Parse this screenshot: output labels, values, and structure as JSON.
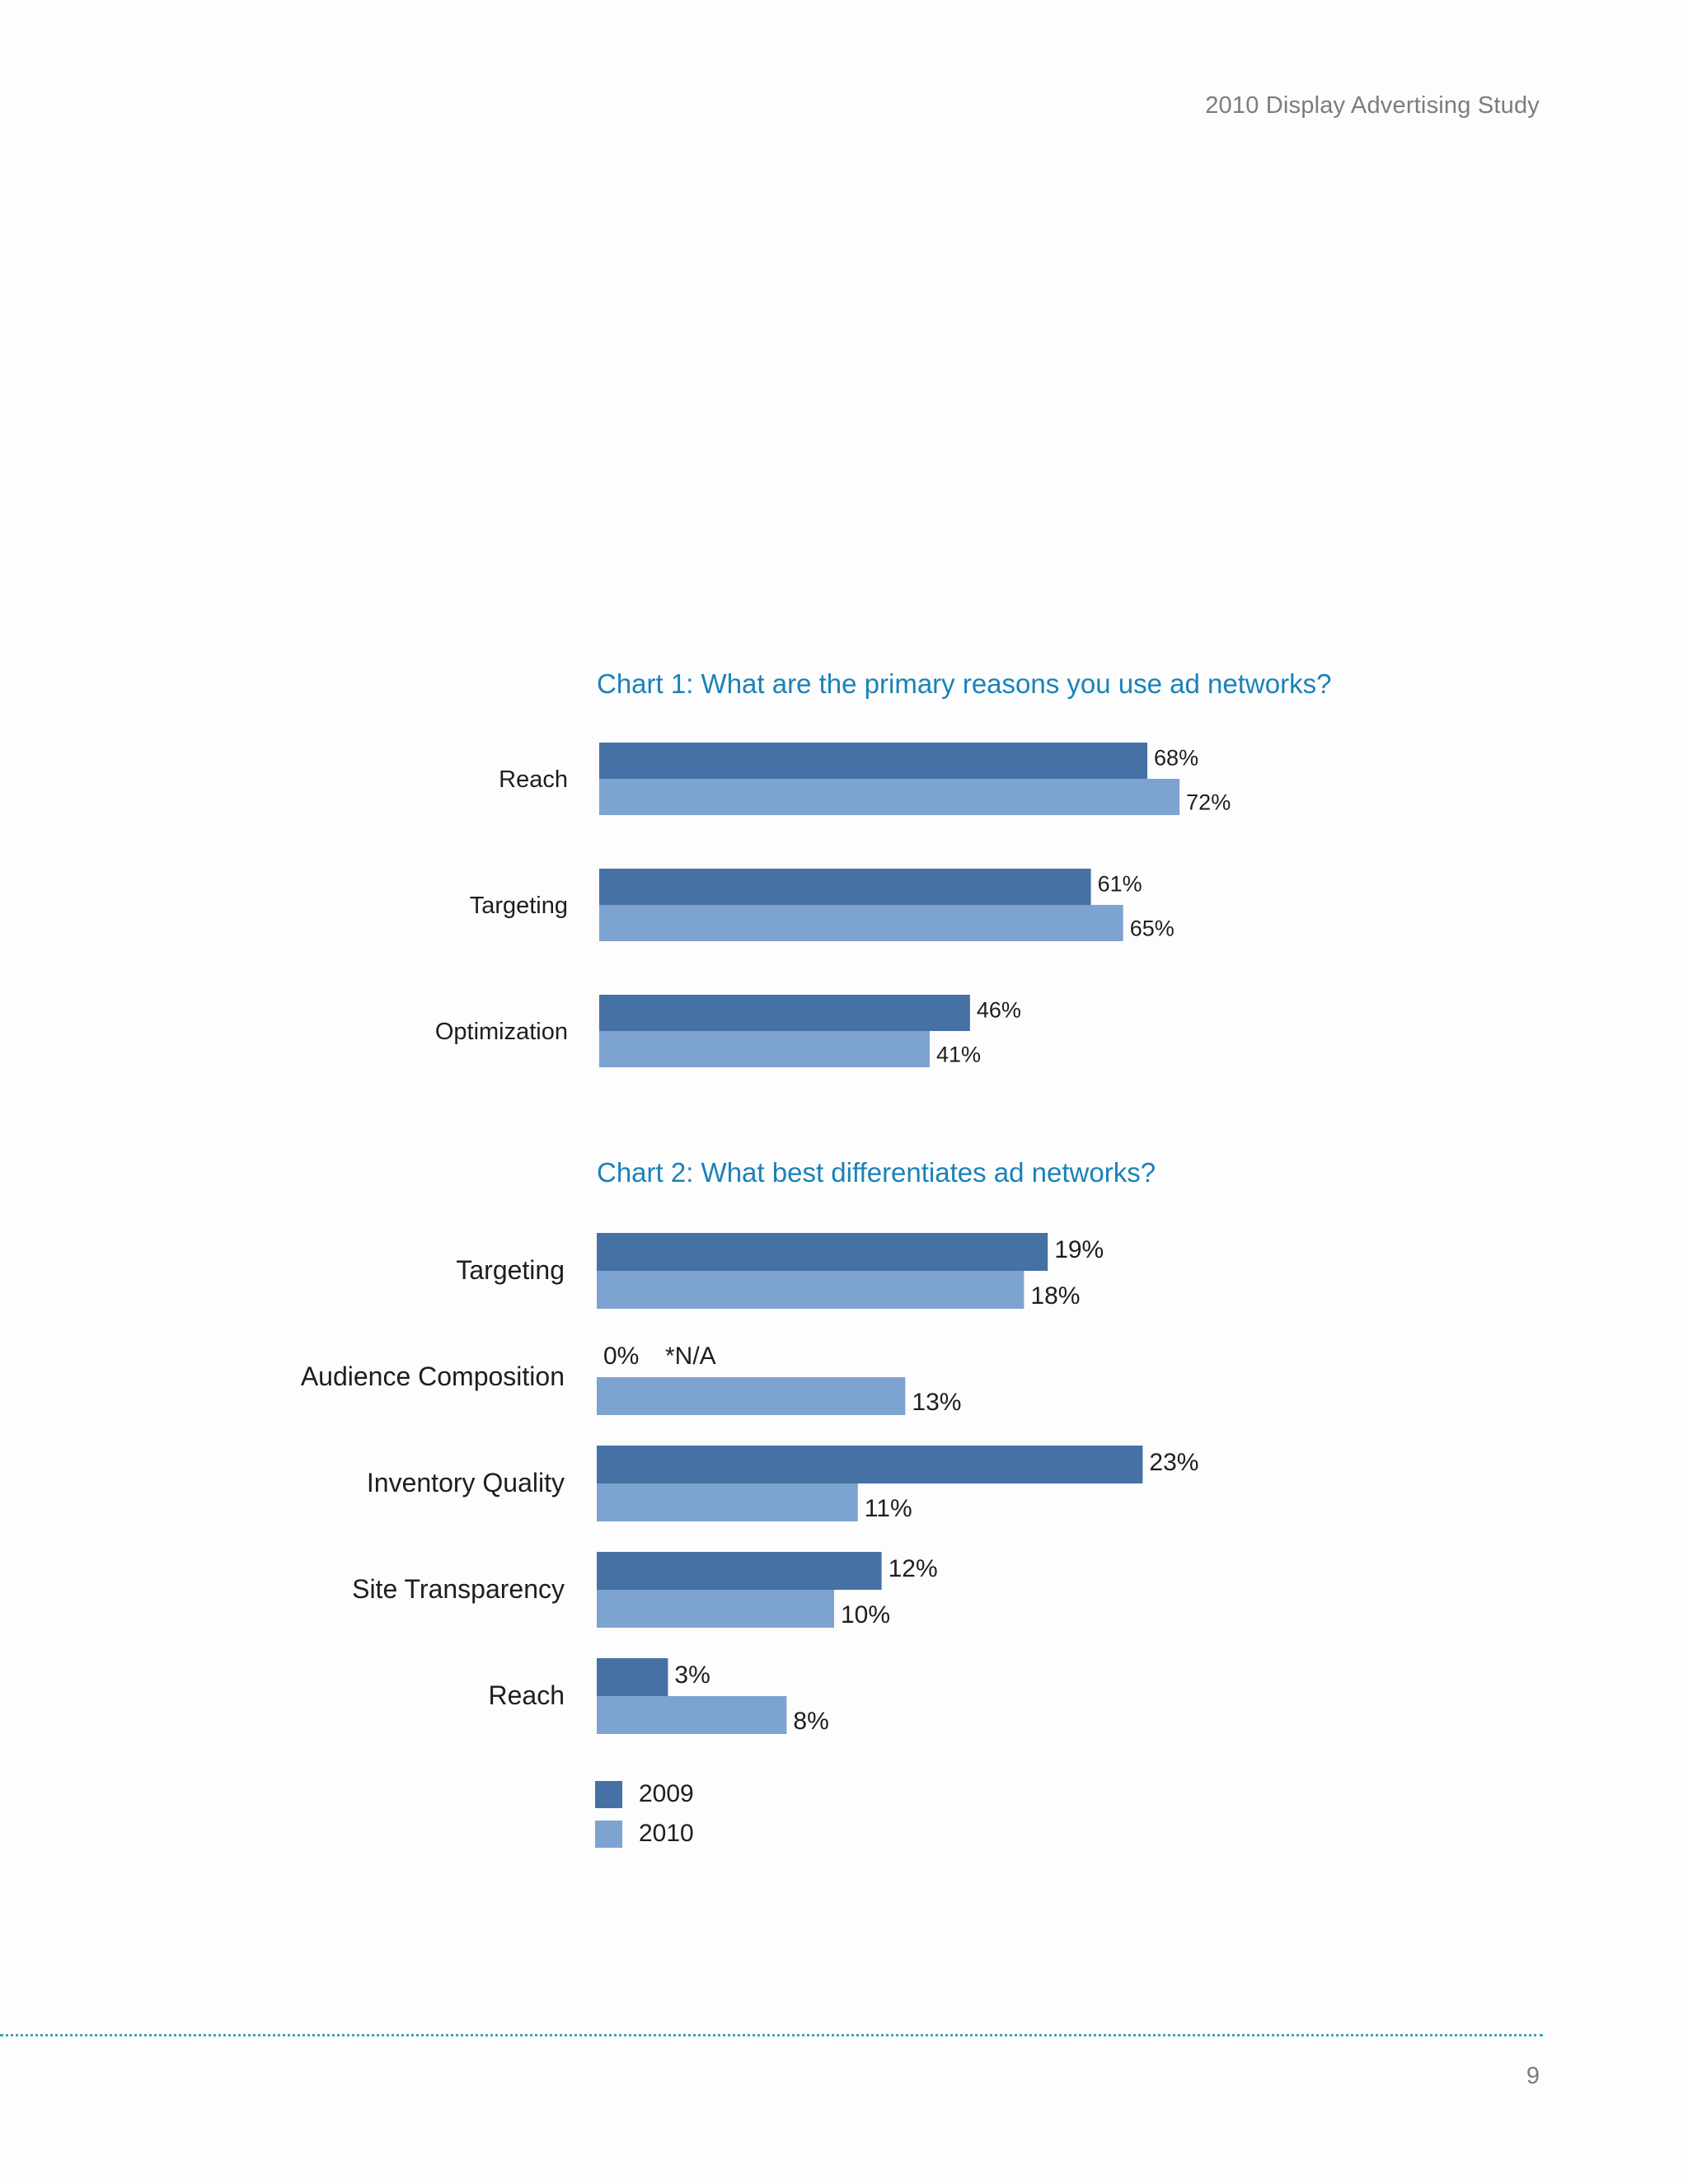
{
  "header": {
    "title": "2010 Display Advertising Study"
  },
  "footer": {
    "page_number": "9"
  },
  "colors": {
    "series_2009": "#4671a5",
    "series_2010": "#7da3d0",
    "title": "#1a82b8"
  },
  "legend": [
    {
      "label": "2009",
      "color": "#4671a5"
    },
    {
      "label": "2010",
      "color": "#7da3d0"
    }
  ],
  "chart_data": [
    {
      "type": "bar",
      "orientation": "horizontal",
      "title": "Chart 1: What are the primary reasons you use ad networks?",
      "categories": [
        "Reach",
        "Targeting",
        "Optimization"
      ],
      "series": [
        {
          "name": "2009",
          "values": [
            68,
            61,
            46
          ],
          "labels": [
            "68%",
            "61%",
            "46%"
          ]
        },
        {
          "name": "2010",
          "values": [
            72,
            65,
            41
          ],
          "labels": [
            "72%",
            "65%",
            "41%"
          ]
        }
      ],
      "unit": "%"
    },
    {
      "type": "bar",
      "orientation": "horizontal",
      "title": "Chart 2: What best differentiates ad networks?",
      "categories": [
        "Targeting",
        "Audience Composition",
        "Inventory Quality",
        "Site Transparency",
        "Reach"
      ],
      "series": [
        {
          "name": "2009",
          "values": [
            19,
            0,
            23,
            12,
            3
          ],
          "labels": [
            "19%",
            "0%",
            "23%",
            "12%",
            "3%"
          ]
        },
        {
          "name": "2010",
          "values": [
            18,
            13,
            11,
            10,
            8
          ],
          "labels": [
            "18%",
            "13%",
            "11%",
            "10%",
            "8%"
          ]
        }
      ],
      "annotations": [
        {
          "category": "Audience Composition",
          "text": "*N/A"
        }
      ],
      "unit": "%"
    }
  ]
}
